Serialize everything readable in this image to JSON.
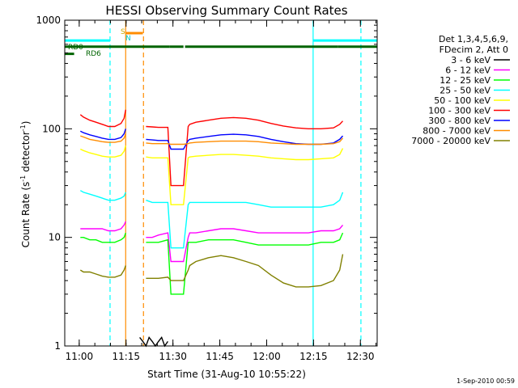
{
  "chart_data": {
    "type": "line",
    "title": "HESSI Observing Summary Count Rates",
    "xlabel": "Start Time (31-Aug-10 10:55:22)",
    "ylabel_main": "Count Rate (s",
    "ylabel_sup1": "-1",
    "ylabel_mid": " detector",
    "ylabel_sup2": "-1",
    "ylabel_end": ")",
    "yscale": "log",
    "ylim": [
      1,
      1000
    ],
    "xlim_minutes": [
      0,
      100
    ],
    "x_ticks": [
      "11:00",
      "11:15",
      "11:30",
      "11:45",
      "12:00",
      "12:15",
      "12:30"
    ],
    "x_tick_minutes": [
      4.63,
      19.63,
      34.63,
      49.63,
      64.63,
      79.63,
      94.63
    ],
    "y_ticks": [
      "1",
      "10",
      "100",
      "1000"
    ],
    "y_tick_values": [
      1,
      10,
      100,
      1000
    ],
    "legend_header": [
      "Det 1,3,4,5,6,9,",
      "FDecim 2, Att 0"
    ],
    "series": [
      {
        "name": "3 - 6 keV",
        "color": "#000000",
        "x": [
          24,
          25,
          26,
          27,
          28,
          29,
          30,
          31,
          32,
          33
        ],
        "y": [
          1.2,
          1.1,
          1.0,
          1.2,
          1.1,
          1.0,
          1.1,
          1.2,
          1.0,
          1.1
        ]
      },
      {
        "name": "6 - 12 keV",
        "color": "#ff00ff",
        "x": [
          5,
          6,
          8,
          10,
          12,
          14,
          16,
          18,
          19,
          19.5,
          26,
          28,
          30,
          33,
          34,
          36,
          38,
          39.5,
          40,
          42,
          46,
          50,
          54,
          58,
          62,
          66,
          70,
          74,
          78,
          82,
          86,
          88,
          89
        ],
        "y": [
          12,
          12,
          12,
          12,
          12,
          11.5,
          11.5,
          12,
          13,
          14,
          10,
          10,
          10.5,
          11,
          6,
          6,
          6,
          10,
          11,
          11,
          11.5,
          12,
          12,
          11.5,
          11,
          11,
          11,
          11,
          11,
          11.5,
          11.5,
          12,
          13
        ]
      },
      {
        "name": "12 - 25 keV",
        "color": "#00ff00",
        "x": [
          5,
          6,
          8,
          10,
          12,
          14,
          16,
          18,
          19,
          19.5,
          26,
          28,
          30,
          33,
          34,
          36,
          38,
          39.5,
          40,
          42,
          46,
          50,
          54,
          58,
          62,
          66,
          70,
          74,
          78,
          82,
          86,
          88,
          89
        ],
        "y": [
          10,
          10,
          9.5,
          9.5,
          9,
          9,
          9,
          9.5,
          10,
          11,
          9,
          9,
          9,
          9.5,
          3,
          3,
          3,
          9,
          9,
          9,
          9.5,
          9.5,
          9.5,
          9,
          8.5,
          8.5,
          8.5,
          8.5,
          8.5,
          9,
          9,
          9.5,
          11
        ]
      },
      {
        "name": "25 - 50 keV",
        "color": "#00ffff",
        "x": [
          5,
          6,
          8,
          10,
          12,
          14,
          16,
          18,
          19,
          19.5,
          26,
          28,
          30,
          33,
          34,
          36,
          38,
          39.5,
          40,
          42,
          46,
          50,
          54,
          58,
          62,
          66,
          70,
          74,
          78,
          82,
          86,
          88,
          89
        ],
        "y": [
          27,
          26,
          25,
          24,
          23,
          22,
          22,
          23,
          24,
          26,
          22,
          21,
          21,
          21,
          8,
          8,
          8,
          20,
          21,
          21,
          21,
          21,
          21,
          21,
          20,
          19,
          19,
          19,
          19,
          19,
          20,
          22,
          26
        ]
      },
      {
        "name": "50 - 100 keV",
        "color": "#ffff00",
        "x": [
          5,
          6,
          8,
          10,
          12,
          14,
          16,
          18,
          19,
          19.5,
          26,
          28,
          30,
          33,
          34,
          36,
          38,
          39.5,
          40,
          42,
          46,
          50,
          54,
          58,
          62,
          66,
          70,
          74,
          78,
          82,
          86,
          88,
          89
        ],
        "y": [
          65,
          63,
          60,
          58,
          56,
          55,
          55,
          57,
          62,
          70,
          55,
          54,
          54,
          54,
          20,
          20,
          20,
          54,
          55,
          56,
          57,
          58,
          58,
          57,
          56,
          54,
          53,
          52,
          52,
          53,
          54,
          58,
          66
        ]
      },
      {
        "name": "100 - 300 keV",
        "color": "#ff0000",
        "x": [
          5,
          6,
          8,
          10,
          12,
          14,
          16,
          18,
          19,
          19.5,
          26,
          28,
          30,
          33,
          34,
          36,
          38,
          39.5,
          40,
          42,
          46,
          50,
          54,
          58,
          62,
          66,
          70,
          74,
          78,
          82,
          86,
          88,
          89
        ],
        "y": [
          135,
          128,
          120,
          115,
          110,
          105,
          105,
          112,
          125,
          150,
          105,
          104,
          103,
          103,
          30,
          30,
          30,
          105,
          110,
          115,
          120,
          125,
          127,
          125,
          120,
          112,
          106,
          102,
          100,
          100,
          102,
          110,
          118
        ]
      },
      {
        "name": "300 - 800 keV",
        "color": "#0000ff",
        "x": [
          5,
          6,
          8,
          10,
          12,
          14,
          16,
          18,
          19,
          19.5,
          26,
          28,
          30,
          33,
          34,
          36,
          38,
          39.5,
          40,
          42,
          46,
          50,
          54,
          58,
          62,
          66,
          70,
          74,
          78,
          82,
          86,
          88,
          89
        ],
        "y": [
          95,
          92,
          88,
          85,
          82,
          80,
          80,
          83,
          90,
          100,
          80,
          79,
          78,
          78,
          65,
          65,
          65,
          78,
          80,
          82,
          85,
          88,
          89,
          88,
          85,
          80,
          76,
          73,
          72,
          72,
          74,
          80,
          86
        ]
      },
      {
        "name": "800 - 7000 keV",
        "color": "#ff8c00",
        "x": [
          5,
          6,
          8,
          10,
          12,
          14,
          16,
          18,
          19,
          19.5,
          26,
          28,
          30,
          33,
          34,
          36,
          38,
          39.5,
          40,
          42,
          46,
          50,
          54,
          58,
          62,
          66,
          70,
          74,
          78,
          82,
          86,
          88,
          89
        ],
        "y": [
          86,
          84,
          80,
          78,
          76,
          75,
          75,
          77,
          82,
          90,
          74,
          73,
          73,
          73,
          72,
          72,
          72,
          73,
          74,
          75,
          76,
          77,
          77,
          77,
          76,
          74,
          73,
          72,
          72,
          72,
          73,
          76,
          82
        ]
      },
      {
        "name": "7000 - 20000 keV",
        "color": "#808000",
        "x": [
          5,
          6,
          8,
          10,
          12,
          14,
          16,
          18,
          19,
          19.5,
          26,
          28,
          30,
          33,
          34,
          36,
          38,
          39.5,
          40,
          42,
          46,
          50,
          54,
          58,
          62,
          66,
          70,
          74,
          78,
          82,
          86,
          88,
          89
        ],
        "y": [
          5,
          4.8,
          4.8,
          4.6,
          4.4,
          4.3,
          4.3,
          4.5,
          5,
          5.5,
          4.2,
          4.2,
          4.2,
          4.3,
          4,
          4,
          4,
          5,
          5.5,
          6,
          6.5,
          6.8,
          6.5,
          6,
          5.5,
          4.5,
          3.8,
          3.5,
          3.5,
          3.6,
          4,
          5,
          7
        ]
      }
    ],
    "flag_labels": {
      "rd0": "RD0",
      "rd6": "RD6",
      "s": "S",
      "n": "N"
    },
    "flags": [
      {
        "name": "RD0",
        "color": "#006400",
        "y_level": 570,
        "segments": [
          [
            0,
            33.5
          ],
          [
            33.5,
            38
          ],
          [
            38.5,
            87.5
          ],
          [
            87.5,
            100
          ]
        ]
      },
      {
        "name": "RD6",
        "color": "#006400",
        "y_level": 490,
        "segments": [
          [
            0,
            3
          ]
        ]
      },
      {
        "name": "cyan-flag",
        "color": "#00ffff",
        "y_level": 650,
        "segments": [
          [
            0,
            14.5
          ],
          [
            79.5,
            100
          ]
        ]
      },
      {
        "name": "orange-flag",
        "color": "#ff8c00",
        "y_level": 760,
        "segments": [
          [
            19.5,
            25
          ]
        ]
      }
    ],
    "vlines": [
      {
        "x": 14.5,
        "color": "#00ffff",
        "style": "dashed"
      },
      {
        "x": 19.5,
        "color": "#ff8c00",
        "style": "solid"
      },
      {
        "x": 25.2,
        "color": "#ff8c00",
        "style": "dashed"
      },
      {
        "x": 79.5,
        "color": "#00ffff",
        "style": "solid"
      },
      {
        "x": 94.8,
        "color": "#00ffff",
        "style": "dashed"
      }
    ],
    "timestamp": "1-Sep-2010 00:59"
  }
}
